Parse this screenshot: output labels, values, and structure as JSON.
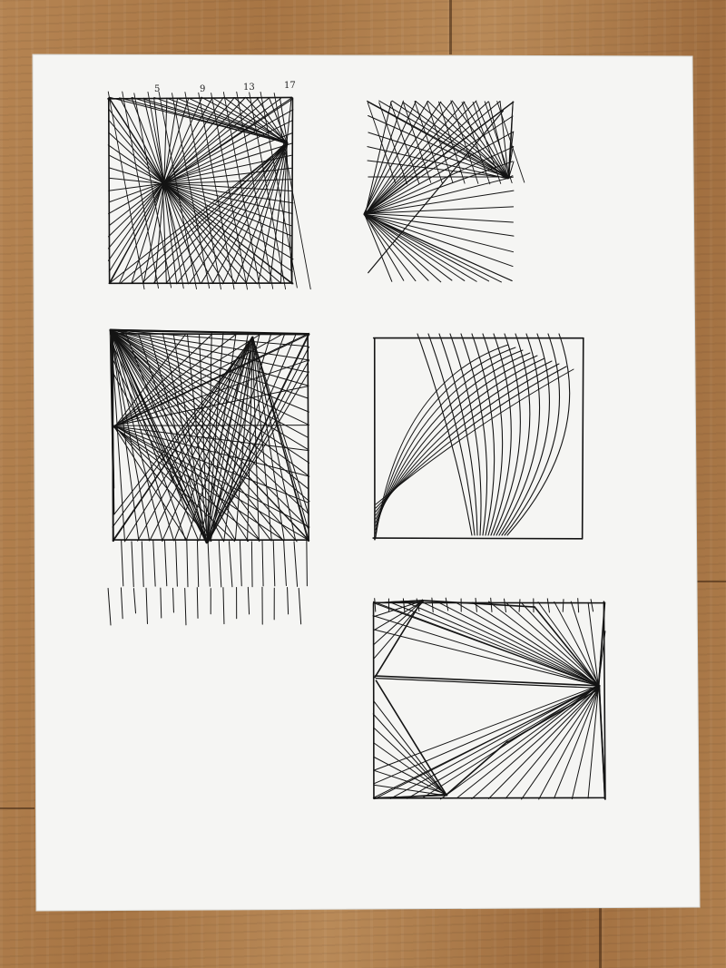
{
  "scene": {
    "paper_color": "#f5f5f3",
    "ink_color": "#141414",
    "floor_color": "#a97646"
  },
  "annotations": {
    "tick_5": "5",
    "tick_9": "9",
    "tick_13": "13",
    "tick_17": "17"
  }
}
